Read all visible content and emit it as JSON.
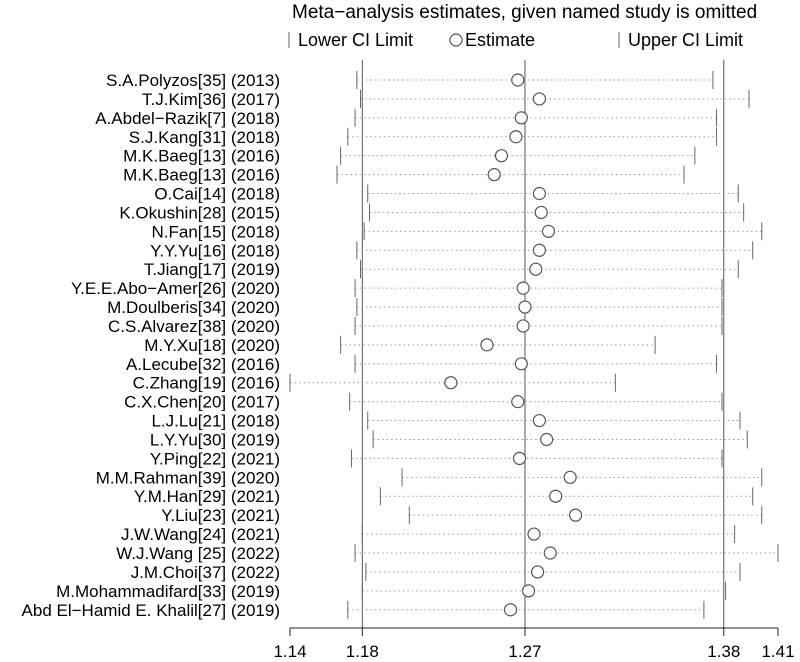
{
  "chart_data": {
    "type": "scatter",
    "title": "Meta−analysis estimates, given named study is omitted",
    "legend": {
      "lower": "Lower CI Limit",
      "estimate": "Estimate",
      "upper": "Upper CI Limit",
      "placement": "top"
    },
    "xlim": [
      1.14,
      1.41
    ],
    "x_ticks": [
      1.14,
      1.18,
      1.27,
      1.38,
      1.41
    ],
    "x_tick_labels": [
      "1.14",
      "1.18",
      "1.27",
      "1.38",
      "1.41"
    ],
    "reference_lines": [
      1.18,
      1.27,
      1.38
    ],
    "studies": [
      {
        "label": "S.A.Polyzos[35] (2013)",
        "lower": 1.177,
        "estimate": 1.266,
        "upper": 1.374
      },
      {
        "label": "T.J.Kim[36] (2017)",
        "lower": 1.179,
        "estimate": 1.278,
        "upper": 1.394
      },
      {
        "label": "A.Abdel−Razik[7] (2018)",
        "lower": 1.176,
        "estimate": 1.268,
        "upper": 1.376
      },
      {
        "label": "S.J.Kang[31] (2018)",
        "lower": 1.172,
        "estimate": 1.265,
        "upper": 1.376
      },
      {
        "label": "M.K.Baeg[13] (2016)",
        "lower": 1.168,
        "estimate": 1.257,
        "upper": 1.364
      },
      {
        "label": "M.K.Baeg[13] (2016)",
        "lower": 1.166,
        "estimate": 1.253,
        "upper": 1.358
      },
      {
        "label": "O.Cai[14] (2018)",
        "lower": 1.183,
        "estimate": 1.278,
        "upper": 1.388
      },
      {
        "label": "K.Okushin[28] (2015)",
        "lower": 1.184,
        "estimate": 1.279,
        "upper": 1.391
      },
      {
        "label": "N.Fan[15] (2018)",
        "lower": 1.181,
        "estimate": 1.283,
        "upper": 1.401
      },
      {
        "label": "Y.Y.Yu[16] (2018)",
        "lower": 1.177,
        "estimate": 1.278,
        "upper": 1.396
      },
      {
        "label": "T.Jiang[17] (2019)",
        "lower": 1.179,
        "estimate": 1.276,
        "upper": 1.388
      },
      {
        "label": "Y.E.E.Abo−Amer[26] (2020)",
        "lower": 1.176,
        "estimate": 1.269,
        "upper": 1.379
      },
      {
        "label": "M.Doulberis[34] (2020)",
        "lower": 1.177,
        "estimate": 1.27,
        "upper": 1.379
      },
      {
        "label": "C.S.Alvarez[38] (2020)",
        "lower": 1.176,
        "estimate": 1.269,
        "upper": 1.379
      },
      {
        "label": "M.Y.Xu[18] (2020)",
        "lower": 1.168,
        "estimate": 1.249,
        "upper": 1.342
      },
      {
        "label": "A.Lecube[32] (2016)",
        "lower": 1.176,
        "estimate": 1.268,
        "upper": 1.376
      },
      {
        "label": "C.Zhang[19] (2016)",
        "lower": 1.14,
        "estimate": 1.229,
        "upper": 1.32
      },
      {
        "label": "C.X.Chen[20] (2017)",
        "lower": 1.173,
        "estimate": 1.266,
        "upper": 1.379
      },
      {
        "label": "L.J.Lu[21] (2018)",
        "lower": 1.183,
        "estimate": 1.278,
        "upper": 1.389
      },
      {
        "label": "L.Y.Yu[30] (2019)",
        "lower": 1.186,
        "estimate": 1.282,
        "upper": 1.393
      },
      {
        "label": "Y.Ping[22] (2021)",
        "lower": 1.174,
        "estimate": 1.267,
        "upper": 1.379
      },
      {
        "label": "M.M.Rahman[39] (2020)",
        "lower": 1.202,
        "estimate": 1.295,
        "upper": 1.401
      },
      {
        "label": "Y.M.Han[29] (2021)",
        "lower": 1.19,
        "estimate": 1.287,
        "upper": 1.396
      },
      {
        "label": "Y.Liu[23] (2021)",
        "lower": 1.206,
        "estimate": 1.298,
        "upper": 1.401
      },
      {
        "label": "J.W.Wang[24] (2021)",
        "lower": 1.18,
        "estimate": 1.275,
        "upper": 1.386
      },
      {
        "label": "W.J.Wang [25] (2022)",
        "lower": 1.176,
        "estimate": 1.284,
        "upper": 1.41
      },
      {
        "label": "J.M.Choi[37] (2022)",
        "lower": 1.182,
        "estimate": 1.277,
        "upper": 1.389
      },
      {
        "label": "M.Mohammadifard[33] (2019)",
        "lower": 1.18,
        "estimate": 1.272,
        "upper": 1.381
      },
      {
        "label": "Abd El−Hamid E. Khalil[27] (2019)",
        "lower": 1.172,
        "estimate": 1.262,
        "upper": 1.369
      }
    ]
  }
}
